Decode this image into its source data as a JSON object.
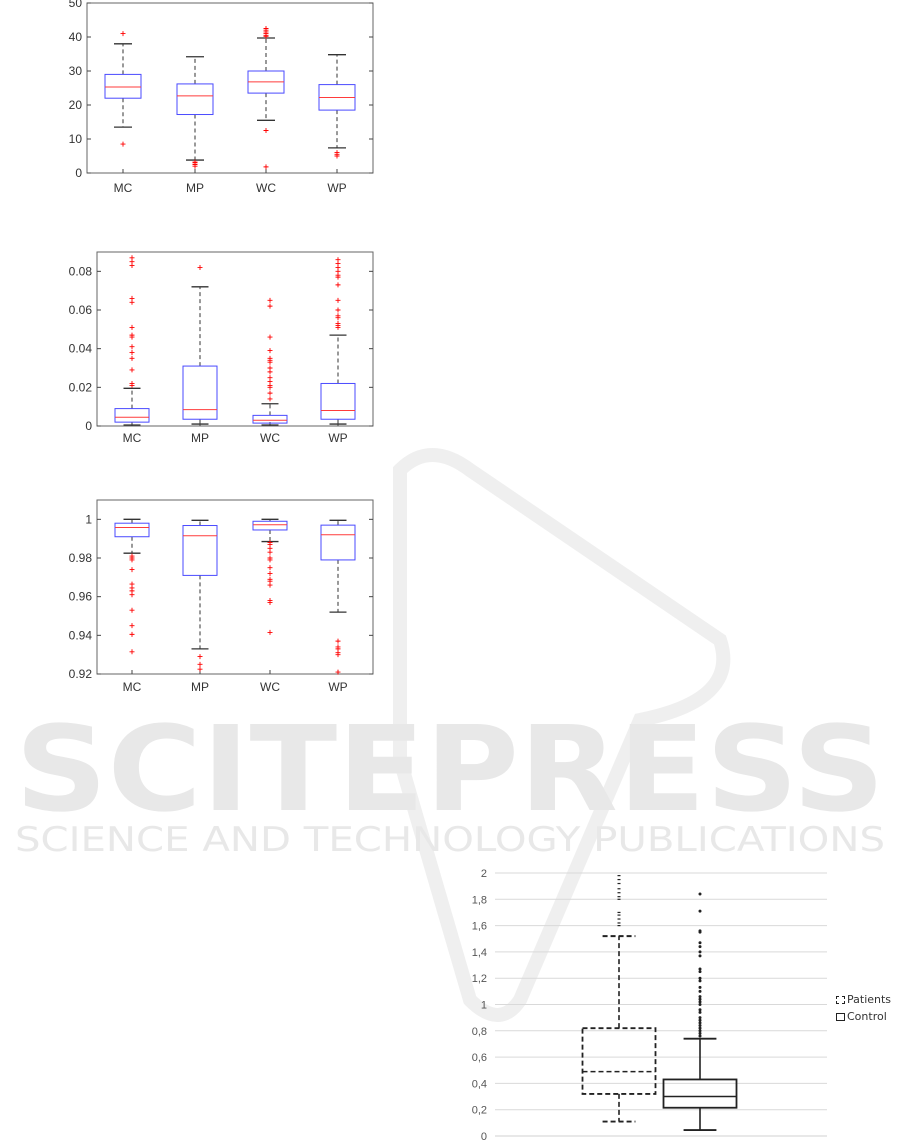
{
  "watermark": {
    "main": "SCITEPRESS",
    "sub": "SCIENCE AND TECHNOLOGY PUBLICATIONS"
  },
  "chart_data": [
    {
      "type": "boxplot",
      "categories": [
        "MC",
        "MP",
        "WC",
        "WP"
      ],
      "ylim": [
        0,
        50
      ],
      "yticks": [
        "0",
        "10",
        "20",
        "30",
        "40",
        "50"
      ],
      "ytick_values": [
        0,
        10,
        20,
        30,
        40,
        50
      ],
      "colors": {
        "box": "#4a4aff",
        "median": "#ff3b3b",
        "whisker": "#333333",
        "outlier": "#ff0000"
      },
      "boxes": [
        {
          "low": 13.5,
          "q1": 22,
          "median": 25.3,
          "q3": 29,
          "high": 38,
          "outliers": [
            41,
            8.5
          ]
        },
        {
          "low": 3.8,
          "q1": 17.2,
          "median": 22.7,
          "q3": 26.2,
          "high": 34.2,
          "outliers": [
            3.2,
            3,
            2.5,
            2
          ]
        },
        {
          "low": 15.5,
          "q1": 23.5,
          "median": 26.8,
          "q3": 30,
          "high": 39.7,
          "outliers": [
            40.2,
            40.5,
            41,
            41.5,
            42,
            42.5,
            12.5,
            1.8
          ]
        },
        {
          "low": 7.4,
          "q1": 18.5,
          "median": 22.2,
          "q3": 26,
          "high": 34.8,
          "outliers": [
            6,
            5.5,
            5
          ]
        }
      ]
    },
    {
      "type": "boxplot",
      "categories": [
        "MC",
        "MP",
        "WC",
        "WP"
      ],
      "ylim": [
        0,
        0.09
      ],
      "yticks": [
        "0",
        "0.02",
        "0.04",
        "0.06",
        "0.08"
      ],
      "ytick_values": [
        0,
        0.02,
        0.04,
        0.06,
        0.08
      ],
      "colors": {
        "box": "#4a4aff",
        "median": "#ff3b3b",
        "whisker": "#333333",
        "outlier": "#ff0000"
      },
      "boxes": [
        {
          "low": 0.0005,
          "q1": 0.002,
          "median": 0.0045,
          "q3": 0.009,
          "high": 0.0195,
          "outliers": [
            0.021,
            0.022,
            0.029,
            0.035,
            0.038,
            0.041,
            0.046,
            0.047,
            0.051,
            0.064,
            0.066,
            0.083,
            0.085,
            0.087
          ]
        },
        {
          "low": 0.001,
          "q1": 0.0035,
          "median": 0.0085,
          "q3": 0.031,
          "high": 0.072,
          "outliers": [
            0.082
          ]
        },
        {
          "low": 0.0005,
          "q1": 0.0015,
          "median": 0.003,
          "q3": 0.0055,
          "high": 0.0115,
          "outliers": [
            0.014,
            0.017,
            0.02,
            0.021,
            0.023,
            0.025,
            0.028,
            0.03,
            0.033,
            0.034,
            0.035,
            0.039,
            0.046,
            0.062,
            0.065
          ]
        },
        {
          "low": 0.001,
          "q1": 0.0035,
          "median": 0.008,
          "q3": 0.022,
          "high": 0.047,
          "outliers": [
            0.051,
            0.052,
            0.053,
            0.056,
            0.057,
            0.06,
            0.065,
            0.073,
            0.077,
            0.078,
            0.08,
            0.082,
            0.084,
            0.086
          ]
        }
      ]
    },
    {
      "type": "boxplot",
      "categories": [
        "MC",
        "MP",
        "WC",
        "WP"
      ],
      "ylim": [
        0.92,
        1.01
      ],
      "yticks": [
        "0.92",
        "0.94",
        "0.96",
        "0.98",
        "1"
      ],
      "ytick_values": [
        0.92,
        0.94,
        0.96,
        0.98,
        1
      ],
      "colors": {
        "box": "#4a4aff",
        "median": "#ff3b3b",
        "whisker": "#333333",
        "outlier": "#ff0000"
      },
      "boxes": [
        {
          "low": 0.9825,
          "q1": 0.991,
          "median": 0.9958,
          "q3": 0.998,
          "high": 1.0,
          "outliers": [
            0.981,
            0.98,
            0.979,
            0.974,
            0.9665,
            0.9645,
            0.963,
            0.961,
            0.953,
            0.945,
            0.9405,
            0.9315
          ]
        },
        {
          "low": 0.933,
          "q1": 0.971,
          "median": 0.9915,
          "q3": 0.9968,
          "high": 0.9995,
          "outliers": [
            0.929,
            0.925,
            0.9225
          ]
        },
        {
          "low": 0.9885,
          "q1": 0.9945,
          "median": 0.9972,
          "q3": 0.999,
          "high": 1.0,
          "outliers": [
            0.988,
            0.987,
            0.985,
            0.983,
            0.98,
            0.979,
            0.975,
            0.972,
            0.969,
            0.968,
            0.966,
            0.958,
            0.957,
            0.9415
          ]
        },
        {
          "low": 0.952,
          "q1": 0.979,
          "median": 0.992,
          "q3": 0.997,
          "high": 0.9995,
          "outliers": [
            0.937,
            0.934,
            0.933,
            0.931,
            0.93,
            0.921
          ]
        }
      ]
    },
    {
      "type": "boxplot",
      "categories": [],
      "legend": [
        "Patients",
        "Control"
      ],
      "legend_placement": "right",
      "grid": true,
      "ylim": [
        0,
        2
      ],
      "yticks": [
        "0",
        "0,2",
        "0,4",
        "0,6",
        "0,8",
        "1",
        "1,2",
        "1,4",
        "1,6",
        "1,8",
        "2"
      ],
      "ytick_values": [
        0,
        0.2,
        0.4,
        0.6,
        0.8,
        1,
        1.2,
        1.4,
        1.6,
        1.8,
        2
      ],
      "colors": {
        "box": "#222222",
        "grid": "#d9d9d9"
      },
      "boxes": [
        {
          "name": "Patients",
          "low": 0.11,
          "q1": 0.32,
          "median": 0.49,
          "q3": 0.82,
          "high": 1.52,
          "outliers": [
            1.6,
            1.62,
            1.65,
            1.68,
            1.7,
            1.8,
            1.82,
            1.85,
            1.88,
            1.92,
            1.95,
            1.98
          ]
        },
        {
          "name": "Control",
          "low": 0.045,
          "q1": 0.215,
          "median": 0.3,
          "q3": 0.43,
          "high": 0.74,
          "outliers": [
            0.76,
            0.78,
            0.8,
            0.82,
            0.84,
            0.86,
            0.88,
            0.9,
            0.94,
            0.96,
            1.0,
            1.02,
            1.04,
            1.06,
            1.1,
            1.13,
            1.18,
            1.2,
            1.25,
            1.27,
            1.37,
            1.4,
            1.44,
            1.47,
            1.55,
            1.56,
            1.71,
            1.84
          ]
        }
      ]
    }
  ]
}
